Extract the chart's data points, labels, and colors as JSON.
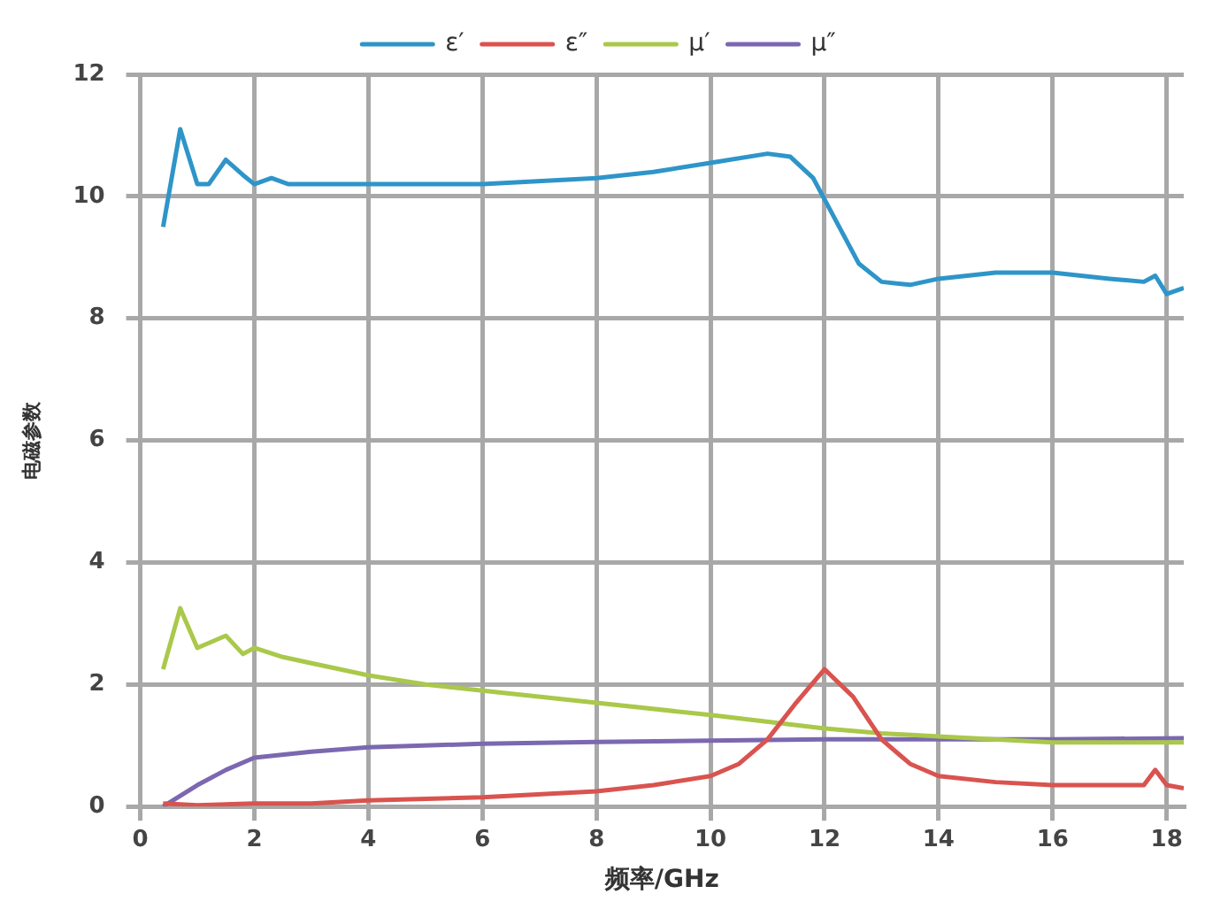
{
  "chart_data": {
    "type": "line",
    "xlabel": "频率/GHz",
    "ylabel": "电磁参数",
    "xlim": [
      0,
      18.3
    ],
    "xticks": [
      0,
      2,
      4,
      6,
      8,
      10,
      12,
      14,
      16,
      18
    ],
    "ylim": [
      0,
      12
    ],
    "yticks": [
      0,
      2,
      4,
      6,
      8,
      10,
      12
    ],
    "grid": true,
    "legend": "top",
    "marker": "none",
    "line_style": "solid",
    "series": [
      {
        "name": "ε′",
        "color": "#2e95c9",
        "x": [
          0.4,
          0.7,
          1.0,
          1.2,
          1.5,
          1.8,
          2.0,
          2.3,
          2.6,
          3,
          4,
          6,
          8,
          9,
          10,
          11,
          11.4,
          11.8,
          12.2,
          12.6,
          13.0,
          13.5,
          14,
          15,
          16,
          17,
          17.6,
          17.8,
          18.0,
          18.3
        ],
        "values": [
          9.5,
          11.1,
          10.2,
          10.2,
          10.6,
          10.35,
          10.2,
          10.3,
          10.2,
          10.2,
          10.2,
          10.2,
          10.3,
          10.4,
          10.55,
          10.7,
          10.65,
          10.3,
          9.6,
          8.9,
          8.6,
          8.55,
          8.65,
          8.75,
          8.75,
          8.65,
          8.6,
          8.7,
          8.4,
          8.5
        ]
      },
      {
        "name": "ε″",
        "color": "#d9534f",
        "x": [
          0.4,
          1,
          2,
          3,
          4,
          6,
          8,
          9,
          10,
          10.5,
          11,
          11.5,
          12,
          12.5,
          13,
          13.5,
          14,
          15,
          16,
          17,
          17.6,
          17.8,
          18,
          18.3
        ],
        "values": [
          0.05,
          0.02,
          0.05,
          0.05,
          0.1,
          0.15,
          0.25,
          0.35,
          0.5,
          0.7,
          1.1,
          1.7,
          2.25,
          1.8,
          1.1,
          0.7,
          0.5,
          0.4,
          0.35,
          0.35,
          0.35,
          0.6,
          0.35,
          0.3
        ]
      },
      {
        "name": "μ′",
        "color": "#aac84a",
        "x": [
          0.4,
          0.7,
          1.0,
          1.5,
          1.8,
          2.0,
          2.5,
          3,
          4,
          5,
          6,
          8,
          10,
          12,
          13,
          14,
          16,
          18.3
        ],
        "values": [
          2.25,
          3.25,
          2.6,
          2.8,
          2.5,
          2.6,
          2.45,
          2.35,
          2.15,
          2.0,
          1.9,
          1.7,
          1.5,
          1.28,
          1.2,
          1.15,
          1.05,
          1.05
        ]
      },
      {
        "name": "μ″",
        "color": "#7b68b0",
        "x": [
          0.4,
          1,
          1.5,
          2,
          3,
          4,
          6,
          8,
          10,
          12,
          14,
          16,
          18.3
        ],
        "values": [
          0,
          0.35,
          0.6,
          0.8,
          0.9,
          0.97,
          1.03,
          1.06,
          1.08,
          1.1,
          1.1,
          1.1,
          1.12
        ]
      }
    ]
  }
}
